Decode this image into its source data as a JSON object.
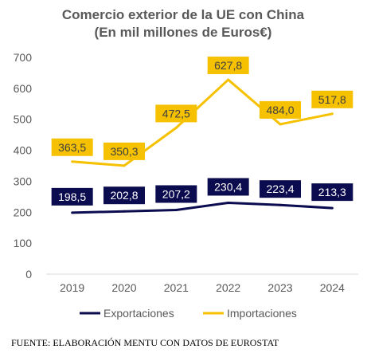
{
  "chart_data": {
    "type": "line",
    "title": "Comercio exterior de la UE con China",
    "subtitle": "(En mil millones de Euros€)",
    "categories": [
      "2019",
      "2020",
      "2021",
      "2022",
      "2023",
      "2024"
    ],
    "ylim": [
      0,
      700
    ],
    "yticks": [
      0,
      100,
      200,
      300,
      400,
      500,
      600,
      700
    ],
    "grid": false,
    "legend_position": "bottom",
    "series": [
      {
        "name": "Exportaciones",
        "color": "#0b0b4f",
        "label_text_color": "#ffffff",
        "values": [
          198.5,
          202.8,
          207.2,
          230.4,
          223.4,
          213.3
        ],
        "labels": [
          "198,5",
          "202,8",
          "207,2",
          "230,4",
          "223,4",
          "213,3"
        ]
      },
      {
        "name": "Importaciones",
        "color": "#f5c100",
        "label_text_color": "#404040",
        "values": [
          363.5,
          350.3,
          472.5,
          627.8,
          484.0,
          517.8
        ],
        "labels": [
          "363,5",
          "350,3",
          "472,5",
          "627,8",
          "484,0",
          "517,8"
        ]
      }
    ]
  },
  "source": "FUENTE: ELABORACIÓN MENTU CON DATOS DE EUROSTAT"
}
